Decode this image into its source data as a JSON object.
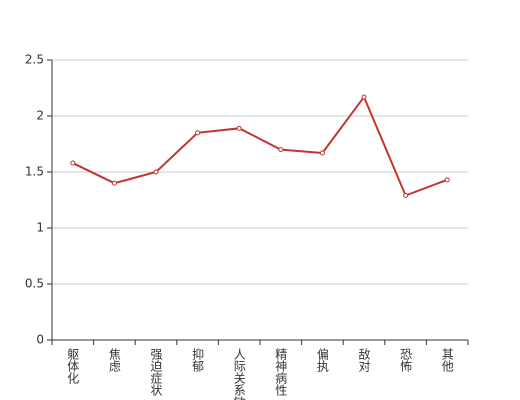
{
  "chart_data": {
    "type": "line",
    "categories": [
      "躯体化",
      "焦虑",
      "强迫症状",
      "抑郁",
      "人际关系敏感",
      "精神病性",
      "偏执",
      "敌对",
      "恐怖",
      "其他"
    ],
    "values": [
      1.58,
      1.4,
      1.5,
      1.85,
      1.89,
      1.7,
      1.67,
      2.17,
      1.29,
      1.43
    ],
    "color": "#c23531",
    "ylim": [
      0,
      2.5
    ],
    "yticks": [
      0,
      0.5,
      1,
      1.5,
      2,
      2.5
    ],
    "grid": true
  }
}
